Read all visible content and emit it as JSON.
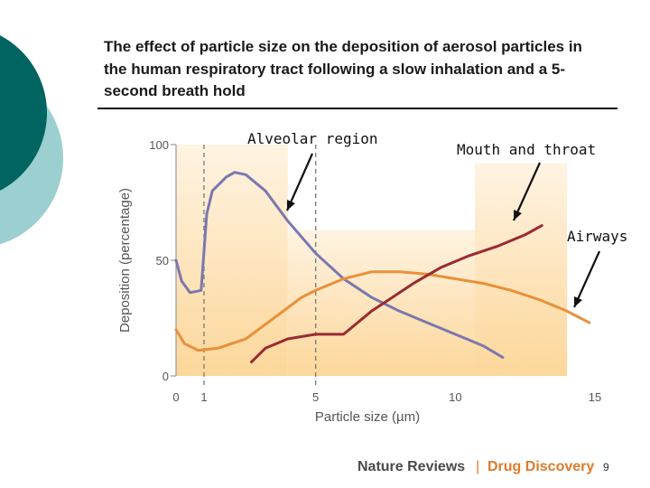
{
  "slide": {
    "title": "The effect of particle size on the deposition of aerosol particles in the human respiratory tract following a slow inhalation and a 5-second breath hold",
    "page_number": "9",
    "credit_journal": "Nature Reviews",
    "credit_separator": "|",
    "credit_section": "Drug Discovery",
    "accent_color": "#006461",
    "accent_light_color": "#9ccfcf"
  },
  "chart_data": {
    "type": "line",
    "xlabel": "Particle size (µm)",
    "ylabel": "Deposition (percentage)",
    "xlim": [
      0,
      15
    ],
    "ylim": [
      0,
      100
    ],
    "xticks": [
      0,
      1,
      5,
      10,
      15
    ],
    "yticks": [
      0,
      50,
      100
    ],
    "reference_lines_x": [
      1,
      5
    ],
    "regions": [
      {
        "label": "Alveolar region",
        "x": [
          0,
          4
        ],
        "y_top": 100
      },
      {
        "label": "Airways",
        "x": [
          4,
          10.7
        ],
        "y_top": 63
      },
      {
        "label": "Mouth and throat",
        "x": [
          10.7,
          14
        ],
        "y_top": 92
      }
    ],
    "annotations": [
      "Alveolar region",
      "Mouth and throat",
      "Airways"
    ],
    "series": [
      {
        "color": "#7a78b0",
        "points": [
          [
            0,
            50
          ],
          [
            0.2,
            41
          ],
          [
            0.5,
            36
          ],
          [
            0.9,
            37
          ],
          [
            1.1,
            70
          ],
          [
            1.3,
            80
          ],
          [
            1.8,
            86
          ],
          [
            2.1,
            88
          ],
          [
            2.5,
            87
          ],
          [
            3.2,
            80
          ],
          [
            4,
            67
          ],
          [
            5,
            53
          ],
          [
            6,
            42
          ],
          [
            7,
            34
          ],
          [
            8,
            28
          ],
          [
            9,
            23
          ],
          [
            10,
            18
          ],
          [
            11,
            13
          ],
          [
            11.7,
            8
          ]
        ]
      },
      {
        "color": "#e8903a",
        "points": [
          [
            0,
            20
          ],
          [
            0.3,
            14
          ],
          [
            0.8,
            11
          ],
          [
            1.5,
            12
          ],
          [
            2.5,
            16
          ],
          [
            3.5,
            25
          ],
          [
            4.5,
            34
          ],
          [
            5,
            37
          ],
          [
            6,
            42
          ],
          [
            7,
            45
          ],
          [
            8,
            45
          ],
          [
            9,
            44
          ],
          [
            10,
            42
          ],
          [
            11,
            40
          ],
          [
            12,
            37
          ],
          [
            13,
            33
          ],
          [
            14,
            28
          ],
          [
            14.8,
            23
          ]
        ]
      },
      {
        "color": "#9a2a33",
        "points": [
          [
            2.7,
            6
          ],
          [
            3.2,
            12
          ],
          [
            4,
            16
          ],
          [
            5,
            18
          ],
          [
            6,
            18
          ],
          [
            7,
            28
          ],
          [
            7.5,
            32
          ],
          [
            8.5,
            40
          ],
          [
            9.5,
            47
          ],
          [
            10.5,
            52
          ],
          [
            11.5,
            56
          ],
          [
            12.5,
            61
          ],
          [
            13.1,
            65
          ]
        ]
      }
    ]
  }
}
